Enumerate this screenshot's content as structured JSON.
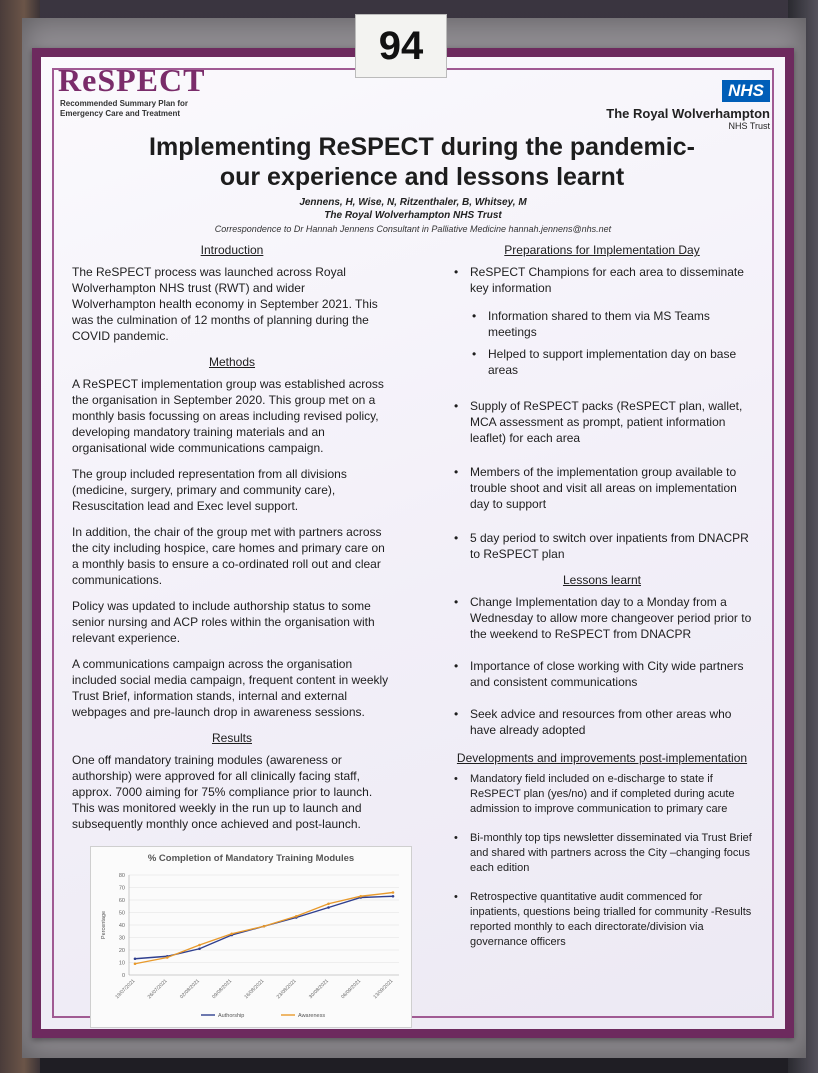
{
  "board_number": "94",
  "logo": {
    "word": "ReSPECT",
    "subtitle": "Recommended Summary Plan for Emergency Care and Treatment"
  },
  "nhs": {
    "badge": "NHS",
    "trust": "The Royal Wolverhampton",
    "trust_sub": "NHS Trust"
  },
  "title": {
    "line1": "Implementing ReSPECT during the pandemic-",
    "line2": "our experience and lessons learnt"
  },
  "authors": "Jennens, H, Wise, N, Ritzenthaler, B, Whitsey, M",
  "institution": "The Royal Wolverhampton NHS Trust",
  "correspondence": "Correspondence to Dr Hannah Jennens Consultant in Palliative Medicine hannah.jennens@nhs.net",
  "left": {
    "intro_heading": "Introduction",
    "intro": "The ReSPECT process was launched across Royal Wolverhampton NHS trust (RWT) and wider Wolverhampton health economy in September 2021. This was the culmination of 12 months of planning during the COVID pandemic.",
    "methods_heading": "Methods",
    "methods": [
      "A ReSPECT implementation group was established across the organisation in September 2020. This group met on a monthly basis focussing on areas including revised policy, developing mandatory training materials and an organisational wide communications campaign.",
      "The group included representation from all divisions (medicine, surgery, primary and community care), Resuscitation lead and Exec level support.",
      "In addition, the chair of the group met with partners across the city including hospice, care homes and primary care on a monthly basis to ensure a co-ordinated roll out and clear communications.",
      "Policy was updated to include authorship status to some senior nursing and ACP roles within the organisation with relevant experience.",
      "A communications campaign across the organisation included social media campaign, frequent content in weekly Trust Brief, information stands, internal and external webpages and pre-launch drop in awareness sessions."
    ],
    "results_heading": "Results",
    "results": "One off mandatory training modules (awareness or authorship) were approved for all clinically facing staff, approx. 7000 aiming for 75% compliance prior to launch. This was monitored weekly in the run up to launch and subsequently monthly once achieved and post-launch."
  },
  "right": {
    "prep_heading": "Preparations for Implementation Day",
    "prep": [
      {
        "text": "ReSPECT Champions for each area to disseminate key information",
        "level": 0
      },
      {
        "text": "Information shared to them via MS Teams meetings",
        "level": 1
      },
      {
        "text": "Helped to support implementation day on base areas",
        "level": 1
      },
      {
        "text": "Supply of ReSPECT packs (ReSPECT plan, wallet, MCA assessment as prompt, patient information leaflet) for each area",
        "level": 0
      },
      {
        "text": "Members of the implementation group available to trouble shoot and visit all areas on implementation day to support",
        "level": 0
      },
      {
        "text": "5 day period to switch over inpatients from DNACPR to ReSPECT plan",
        "level": 0
      }
    ],
    "lessons_heading": "Lessons learnt",
    "lessons": [
      "Change Implementation day to a Monday from a Wednesday to allow more changeover period prior to the weekend to ReSPECT from DNACPR",
      "Importance of close working with City wide partners and consistent communications",
      "Seek advice and resources from other areas who have already adopted"
    ],
    "dev_heading": "Developments and improvements post-implementation",
    "dev": [
      "Mandatory field included on e-discharge to state if ReSPECT plan (yes/no) and if completed during acute admission to improve communication to primary care",
      "Bi-monthly top tips newsletter disseminated via Trust Brief and shared with partners across the City –changing focus each edition",
      "Retrospective quantitative audit commenced for inpatients, questions being trialled for community -Results reported monthly to each directorate/division via governance officers"
    ]
  },
  "chart_data": {
    "type": "line",
    "title": "% Completion of Mandatory Training Modules",
    "ylabel": "Percentage",
    "xlabel": "",
    "ylim": [
      0,
      80
    ],
    "yticks": [
      "0",
      "10",
      "20",
      "30",
      "40",
      "50",
      "60",
      "70",
      "80"
    ],
    "categories": [
      "19/07/2021",
      "26/07/2021",
      "02/08/2021",
      "09/08/2021",
      "16/08/2021",
      "23/08/2021",
      "30/08/2021",
      "06/09/2021",
      "13/09/2021"
    ],
    "series": [
      {
        "name": "Authorship",
        "color": "#2f3f8f",
        "values": [
          13,
          15,
          21,
          32,
          39,
          46,
          54,
          62,
          63
        ]
      },
      {
        "name": "Awareness",
        "color": "#e89a2c",
        "values": [
          9,
          14,
          24,
          33,
          39,
          47,
          57,
          63,
          66
        ]
      }
    ]
  }
}
